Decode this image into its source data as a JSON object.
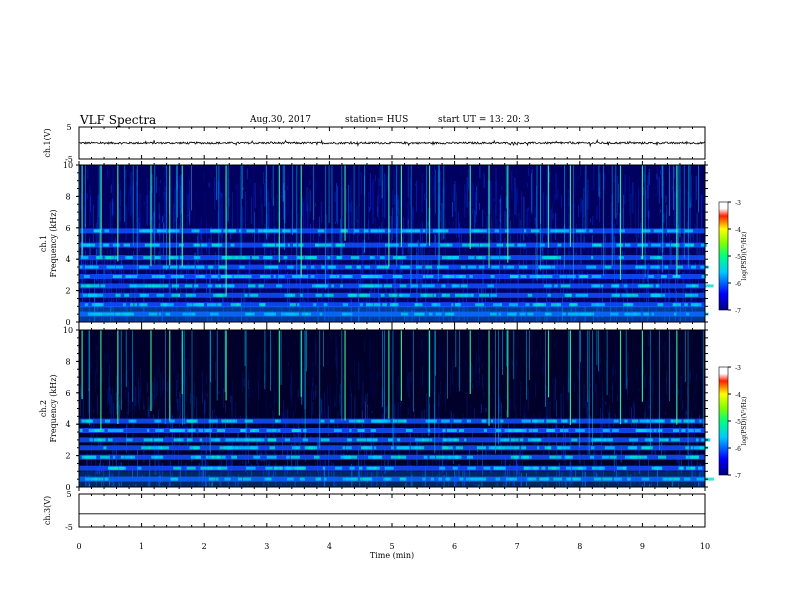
{
  "header": {
    "title": "VLF Spectra",
    "date": "Aug.30, 2017",
    "station": "station= HUS",
    "start": "start UT =  13: 20: 3"
  },
  "chart_data": [
    {
      "type": "line",
      "panel": "ch1-waveform",
      "ylabel": "ch.1(V)",
      "ylim": [
        -5,
        5
      ],
      "yticks": [
        "5",
        "-5"
      ],
      "xlim": [
        0,
        10
      ],
      "trace_level": 0,
      "trace_amplitude": 0.3
    },
    {
      "type": "heatmap",
      "panel": "ch1-spectrogram",
      "ylabel": "ch.1 Frequency (kHz)",
      "ylim": [
        0,
        10
      ],
      "yticks": [
        "0",
        "2",
        "4",
        "6",
        "8",
        "10"
      ],
      "xlim": [
        0,
        10
      ],
      "bands_khz": [
        0.5,
        1.1,
        1.7,
        2.3,
        2.9,
        3.5,
        4.1,
        4.9,
        5.8
      ],
      "spikes_min": [
        0.05,
        0.35,
        0.62,
        1.15,
        1.45,
        1.65,
        2.35,
        3.2,
        3.55,
        4.25,
        4.95,
        5.15,
        5.6,
        6.25,
        6.55,
        6.85,
        7.5,
        7.85,
        8.65,
        9.0,
        9.55
      ],
      "colorbar": {
        "label": "log(PSD)(V²/Hz)",
        "range": [
          -7,
          -3
        ],
        "ticks": [
          "-3",
          "-4",
          "-5",
          "-6",
          "-7"
        ]
      }
    },
    {
      "type": "heatmap",
      "panel": "ch2-spectrogram",
      "ylabel": "ch.2 Frequency (kHz)",
      "ylim": [
        0,
        10
      ],
      "yticks": [
        "0",
        "2",
        "4",
        "6",
        "8",
        "10"
      ],
      "xlim": [
        0,
        10
      ],
      "bands_khz": [
        0.5,
        1.2,
        1.9,
        2.5,
        3.0,
        3.6,
        4.2
      ],
      "spikes_min": [
        0.05,
        0.35,
        0.62,
        1.15,
        1.45,
        1.65,
        2.35,
        3.2,
        3.55,
        4.25,
        4.95,
        5.15,
        5.6,
        6.25,
        6.55,
        6.85,
        7.5,
        7.85,
        8.65,
        9.0,
        9.55
      ],
      "colorbar": {
        "label": "log(PSD)(V²/Hz)",
        "range": [
          -7,
          -3
        ],
        "ticks": [
          "-3",
          "-4",
          "-5",
          "-6",
          "-7"
        ]
      }
    },
    {
      "type": "line",
      "panel": "ch3-waveform",
      "ylabel": "ch.3(V)",
      "ylim": [
        -5,
        5
      ],
      "yticks": [
        "5",
        "-5"
      ],
      "xlim": [
        0,
        10
      ],
      "trace_level": -1,
      "trace_amplitude": 0
    }
  ],
  "xaxis": {
    "label": "Time (min)",
    "ticks": [
      "0",
      "1",
      "2",
      "3",
      "4",
      "5",
      "6",
      "7",
      "8",
      "9",
      "10"
    ]
  }
}
